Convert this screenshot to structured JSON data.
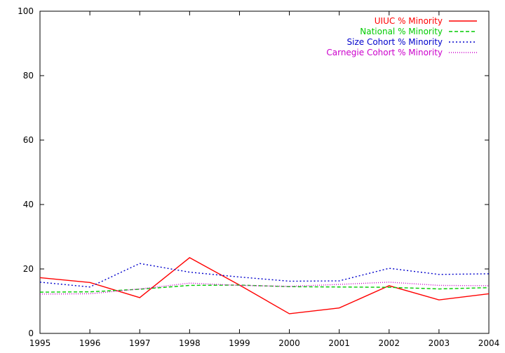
{
  "chart_data": {
    "type": "line",
    "title": "",
    "xlabel": "",
    "ylabel": "",
    "xlim": [
      1995,
      2004
    ],
    "ylim": [
      0,
      100
    ],
    "x": [
      1995,
      1996,
      1997,
      1998,
      1999,
      2000,
      2001,
      2002,
      2003,
      2004
    ],
    "x_ticks": [
      "1995",
      "1996",
      "1997",
      "1998",
      "1999",
      "2000",
      "2001",
      "2002",
      "2003",
      "2004"
    ],
    "y_ticks": [
      "0",
      "20",
      "40",
      "60",
      "80",
      "100"
    ],
    "grid": false,
    "legend_position": "top-right",
    "series": [
      {
        "name": "UIUC % Minority",
        "color": "#ff0000",
        "dash": "solid",
        "values": [
          17.3,
          15.8,
          11.1,
          23.5,
          15.0,
          6.1,
          7.9,
          14.8,
          10.4,
          12.3
        ]
      },
      {
        "name": "National % Minority",
        "color": "#00cc00",
        "dash": "dashed",
        "values": [
          12.8,
          12.9,
          13.7,
          14.9,
          15.0,
          14.5,
          14.4,
          14.3,
          13.8,
          14.2
        ]
      },
      {
        "name": "Size Cohort % Minority",
        "color": "#0000cc",
        "dash": "dotted",
        "values": [
          15.9,
          14.4,
          21.7,
          19.0,
          17.5,
          16.2,
          16.3,
          20.2,
          18.3,
          18.5
        ]
      },
      {
        "name": "Carnegie Cohort % Minority",
        "color": "#cc00cc",
        "dash": "fine-dotted",
        "values": [
          12.2,
          12.3,
          13.8,
          15.6,
          14.9,
          14.6,
          15.2,
          15.9,
          14.9,
          14.8
        ]
      }
    ]
  }
}
